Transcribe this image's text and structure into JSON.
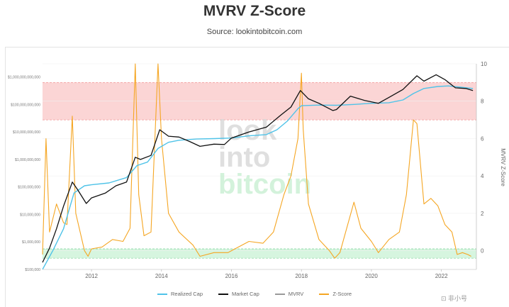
{
  "header": {
    "title": "MVRV Z-Score",
    "subtitle": "Source: lookintobitcoin.com"
  },
  "watermark": {
    "text": "look into bitcoin",
    "lines": [
      "look",
      "into",
      "bitcoin"
    ],
    "corner_text": "⊡ 非小号"
  },
  "colors": {
    "realized_cap": "#4fc3e8",
    "market_cap": "#111111",
    "mvrv": "#9a9a9a",
    "z_score": "#f5a623",
    "top_band": "#fbd5d5",
    "bottom_band": "#d6f5df"
  },
  "chart_data": {
    "type": "line",
    "title": "MVRV Z-Score",
    "subtitle": "Source: lookintobitcoin.com",
    "x_ticks": [
      "2012",
      "2014",
      "2016",
      "2018",
      "2020",
      "2022"
    ],
    "x_range": [
      2010.6,
      2023.0
    ],
    "y_left": {
      "scale": "log",
      "range": [
        100000,
        3000000000000
      ],
      "ticks": [
        "$100,000",
        "$1,000,000",
        "$10,000,000",
        "$100,000,000",
        "$1,000,000,000",
        "$10,000,000,000",
        "$100,000,000,000",
        "$1,000,000,000,000"
      ]
    },
    "y_right": {
      "label": "MVRV Z-Score",
      "range": [
        -1,
        10
      ],
      "ticks": [
        "0",
        "2",
        "4",
        "6",
        "8",
        "10"
      ]
    },
    "bands": [
      {
        "name": "top",
        "from": 7,
        "to": 9
      },
      {
        "name": "bottom",
        "from": -0.4,
        "to": 0.1
      }
    ],
    "legend": [
      "Realized Cap",
      "Market Cap",
      "MVRV",
      "Z-Score"
    ],
    "series": [
      {
        "name": "Realized Cap",
        "axis": "left",
        "points": [
          [
            2010.6,
            100000
          ],
          [
            2010.9,
            500000
          ],
          [
            2011.2,
            3000000
          ],
          [
            2011.5,
            60000000
          ],
          [
            2011.8,
            110000000
          ],
          [
            2012.0,
            120000000
          ],
          [
            2012.5,
            140000000
          ],
          [
            2013.0,
            220000000
          ],
          [
            2013.3,
            600000000
          ],
          [
            2013.6,
            800000000
          ],
          [
            2013.9,
            2500000000
          ],
          [
            2014.2,
            4200000000
          ],
          [
            2014.5,
            5000000000
          ],
          [
            2015.0,
            5500000000
          ],
          [
            2015.5,
            5700000000
          ],
          [
            2016.0,
            6000000000
          ],
          [
            2016.5,
            7200000000
          ],
          [
            2017.0,
            8000000000
          ],
          [
            2017.3,
            12000000000
          ],
          [
            2017.6,
            25000000000
          ],
          [
            2017.9,
            70000000000
          ],
          [
            2018.0,
            90000000000
          ],
          [
            2018.5,
            95000000000
          ],
          [
            2019.0,
            93000000000
          ],
          [
            2019.5,
            100000000000
          ],
          [
            2020.0,
            110000000000
          ],
          [
            2020.5,
            115000000000
          ],
          [
            2020.9,
            145000000000
          ],
          [
            2021.2,
            250000000000
          ],
          [
            2021.5,
            380000000000
          ],
          [
            2021.9,
            450000000000
          ],
          [
            2022.2,
            470000000000
          ],
          [
            2022.5,
            430000000000
          ],
          [
            2022.9,
            380000000000
          ]
        ]
      },
      {
        "name": "Market Cap",
        "axis": "left",
        "points": [
          [
            2010.6,
            180000
          ],
          [
            2010.8,
            600000
          ],
          [
            2011.0,
            3000000
          ],
          [
            2011.2,
            20000000
          ],
          [
            2011.45,
            150000000
          ],
          [
            2011.6,
            80000000
          ],
          [
            2011.85,
            25000000
          ],
          [
            2012.0,
            40000000
          ],
          [
            2012.4,
            60000000
          ],
          [
            2012.7,
            110000000
          ],
          [
            2013.0,
            150000000
          ],
          [
            2013.25,
            1200000000
          ],
          [
            2013.4,
            1000000000
          ],
          [
            2013.7,
            1400000000
          ],
          [
            2013.95,
            12000000000
          ],
          [
            2014.2,
            7000000000
          ],
          [
            2014.5,
            6500000000
          ],
          [
            2014.8,
            4500000000
          ],
          [
            2015.1,
            3000000000
          ],
          [
            2015.5,
            3600000000
          ],
          [
            2015.8,
            3500000000
          ],
          [
            2016.0,
            6000000000
          ],
          [
            2016.5,
            10000000000
          ],
          [
            2017.0,
            15000000000
          ],
          [
            2017.4,
            40000000000
          ],
          [
            2017.7,
            80000000000
          ],
          [
            2017.97,
            320000000000
          ],
          [
            2018.2,
            160000000000
          ],
          [
            2018.5,
            110000000000
          ],
          [
            2018.9,
            60000000000
          ],
          [
            2019.0,
            65000000000
          ],
          [
            2019.4,
            200000000000
          ],
          [
            2019.8,
            140000000000
          ],
          [
            2020.2,
            110000000000
          ],
          [
            2020.5,
            180000000000
          ],
          [
            2020.9,
            350000000000
          ],
          [
            2021.3,
            1100000000000
          ],
          [
            2021.5,
            700000000000
          ],
          [
            2021.85,
            1200000000000
          ],
          [
            2022.1,
            800000000000
          ],
          [
            2022.4,
            400000000000
          ],
          [
            2022.7,
            380000000000
          ],
          [
            2022.9,
            320000000000
          ]
        ]
      },
      {
        "name": "Z-Score",
        "axis": "right",
        "points": [
          [
            2010.6,
            -0.2
          ],
          [
            2010.7,
            6.0
          ],
          [
            2010.8,
            1.0
          ],
          [
            2011.0,
            2.5
          ],
          [
            2011.2,
            1.5
          ],
          [
            2011.3,
            1.4
          ],
          [
            2011.45,
            7.2
          ],
          [
            2011.55,
            2.0
          ],
          [
            2011.8,
            0.0
          ],
          [
            2011.9,
            -0.3
          ],
          [
            2012.0,
            0.1
          ],
          [
            2012.3,
            0.2
          ],
          [
            2012.6,
            0.6
          ],
          [
            2012.9,
            0.5
          ],
          [
            2013.1,
            1.2
          ],
          [
            2013.25,
            10.0
          ],
          [
            2013.35,
            3.0
          ],
          [
            2013.5,
            0.8
          ],
          [
            2013.7,
            1.0
          ],
          [
            2013.9,
            10.0
          ],
          [
            2014.0,
            6.0
          ],
          [
            2014.2,
            2.0
          ],
          [
            2014.5,
            1.0
          ],
          [
            2014.9,
            0.3
          ],
          [
            2015.1,
            -0.3
          ],
          [
            2015.5,
            -0.1
          ],
          [
            2015.9,
            -0.1
          ],
          [
            2016.0,
            0.0
          ],
          [
            2016.5,
            0.5
          ],
          [
            2016.9,
            0.4
          ],
          [
            2017.2,
            1.0
          ],
          [
            2017.5,
            3.0
          ],
          [
            2017.7,
            4.0
          ],
          [
            2017.9,
            6.0
          ],
          [
            2018.0,
            9.5
          ],
          [
            2018.05,
            6.5
          ],
          [
            2018.2,
            2.5
          ],
          [
            2018.5,
            0.6
          ],
          [
            2018.8,
            0.0
          ],
          [
            2018.95,
            -0.4
          ],
          [
            2019.1,
            -0.1
          ],
          [
            2019.5,
            2.6
          ],
          [
            2019.7,
            1.2
          ],
          [
            2020.0,
            0.5
          ],
          [
            2020.2,
            -0.1
          ],
          [
            2020.5,
            0.6
          ],
          [
            2020.8,
            1.0
          ],
          [
            2021.0,
            3.0
          ],
          [
            2021.2,
            7.0
          ],
          [
            2021.3,
            6.8
          ],
          [
            2021.5,
            2.5
          ],
          [
            2021.7,
            2.8
          ],
          [
            2021.9,
            2.4
          ],
          [
            2022.1,
            1.4
          ],
          [
            2022.3,
            1.0
          ],
          [
            2022.45,
            -0.2
          ],
          [
            2022.6,
            -0.1
          ],
          [
            2022.75,
            -0.2
          ],
          [
            2022.85,
            -0.3
          ]
        ]
      }
    ]
  },
  "legend_items": [
    {
      "label": "Realized Cap",
      "color": "#4fc3e8"
    },
    {
      "label": "Market Cap",
      "color": "#111111"
    },
    {
      "label": "MVRV",
      "color": "#9a9a9a"
    },
    {
      "label": "Z-Score",
      "color": "#f5a623"
    }
  ]
}
